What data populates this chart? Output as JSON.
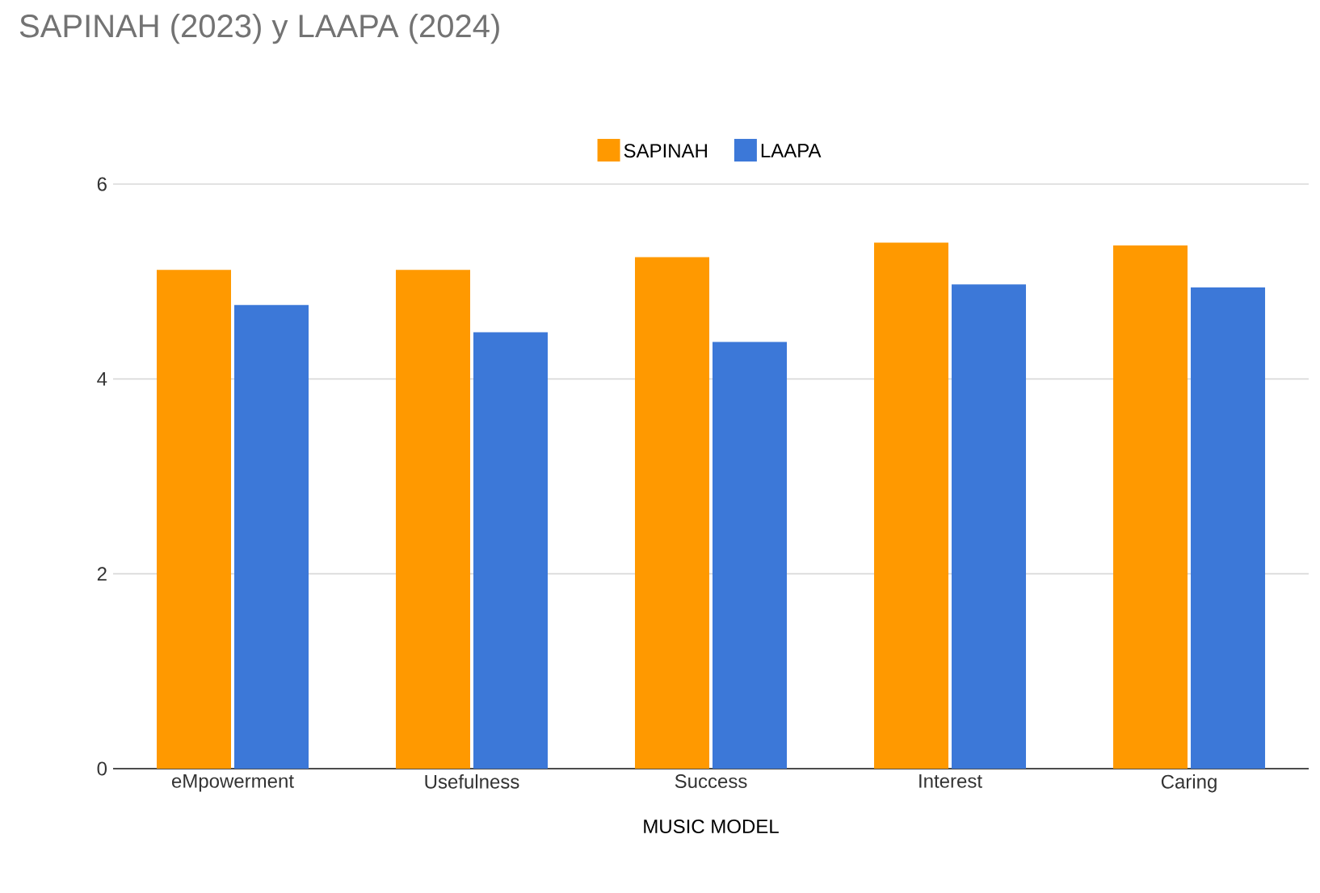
{
  "chart_data": {
    "type": "bar",
    "title": "SAPINAH (2023) y LAAPA (2024)",
    "xlabel": "MUSIC MODEL",
    "categories": [
      "eMpowerment",
      "Usefulness",
      "Success",
      "Interest",
      "Caring"
    ],
    "series": [
      {
        "name": "SAPINAH",
        "color": "#ff9900",
        "values": [
          5.12,
          5.12,
          5.25,
          5.4,
          5.37
        ]
      },
      {
        "name": "LAAPA",
        "color": "#3c78d8",
        "values": [
          4.76,
          4.48,
          4.38,
          4.97,
          4.94
        ]
      }
    ],
    "ylim": [
      0,
      6
    ],
    "yticks": [
      0,
      2,
      4,
      6
    ],
    "grid": "y",
    "legend": "top"
  }
}
